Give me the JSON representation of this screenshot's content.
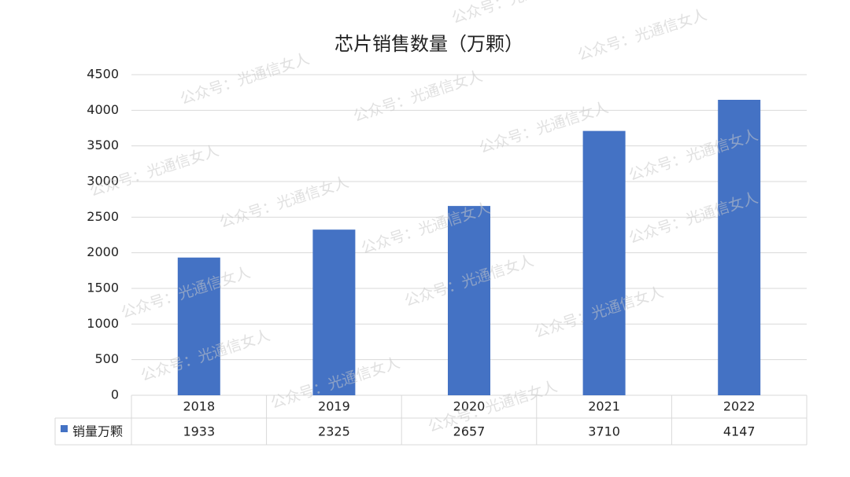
{
  "chart_data": {
    "type": "bar",
    "title": "芯片销售数量（万颗）",
    "categories": [
      "2018",
      "2019",
      "2020",
      "2021",
      "2022"
    ],
    "series": [
      {
        "name": "销量万颗",
        "color": "#4472c4",
        "values": [
          1933,
          2325,
          2657,
          3710,
          4147
        ]
      }
    ],
    "ylim": [
      0,
      4500
    ],
    "yticks": [
      0,
      500,
      1000,
      1500,
      2000,
      2500,
      3000,
      3500,
      4000,
      4500
    ],
    "grid": true,
    "data_table": true,
    "watermark": "公众号：光通信女人"
  }
}
